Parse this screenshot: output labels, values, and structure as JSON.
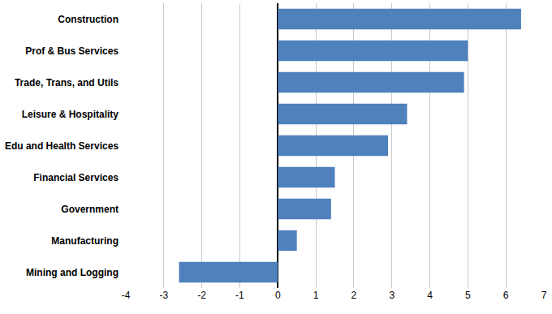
{
  "chart_data": {
    "type": "bar",
    "orientation": "horizontal",
    "categories": [
      "Construction",
      "Prof & Bus Services",
      "Trade, Trans, and Utils",
      "Leisure & Hospitality",
      "Edu and Health Services",
      "Financial Services",
      "Government",
      "Manufacturing",
      "Mining and Logging"
    ],
    "values": [
      6.4,
      5.0,
      4.9,
      3.4,
      2.9,
      1.5,
      1.4,
      0.5,
      -2.6
    ],
    "color": "#4f81bd",
    "xlim": [
      -4,
      7
    ],
    "xticks": [
      -4,
      -3,
      -2,
      -1,
      0,
      1,
      2,
      3,
      4,
      5,
      6,
      7
    ],
    "grid": true
  }
}
